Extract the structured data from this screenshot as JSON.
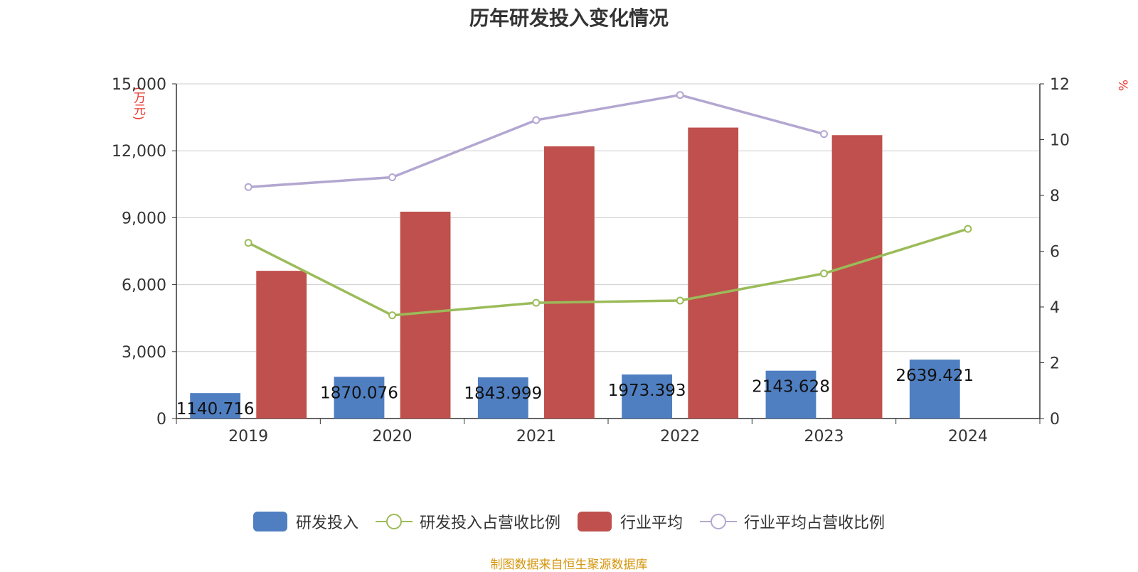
{
  "title": "历年研发投入变化情况",
  "left_unit": "(万元)",
  "right_unit": "%",
  "source": "制图数据来自恒生聚源数据库",
  "colors": {
    "rd_bar": "#4f7fc1",
    "industry_bar": "#c0504d",
    "rd_ratio_line": "#9bbb59",
    "industry_ratio_line": "#b3a7d1",
    "axis_text": "#333333",
    "grid": "#cccccc"
  },
  "legend": [
    {
      "label": "研发投入",
      "kind": "bar",
      "color": "#4f7fc1"
    },
    {
      "label": "研发投入占营收比例",
      "kind": "line",
      "color": "#9bbb59"
    },
    {
      "label": "行业平均",
      "kind": "bar",
      "color": "#c0504d"
    },
    {
      "label": "行业平均占营收比例",
      "kind": "line",
      "color": "#b3a7d1"
    }
  ],
  "chart_data": {
    "type": "bar",
    "categories": [
      "2019",
      "2020",
      "2021",
      "2022",
      "2023",
      "2024"
    ],
    "y_left": {
      "min": 0,
      "max": 15000,
      "ticks": [
        0,
        3000,
        6000,
        9000,
        12000,
        15000
      ],
      "tick_labels": [
        "0",
        "3,000",
        "6,000",
        "9,000",
        "12,000",
        "15,000"
      ]
    },
    "y_right": {
      "min": 0,
      "max": 12,
      "ticks": [
        0,
        2,
        4,
        6,
        8,
        10,
        12
      ],
      "tick_labels": [
        "0",
        "2",
        "4",
        "6",
        "8",
        "10",
        "12"
      ]
    },
    "grid": true,
    "legend_position": "bottom",
    "series": [
      {
        "name": "研发投入",
        "type": "bar",
        "axis": "left",
        "values": [
          1140.716,
          1870.076,
          1843.999,
          1973.393,
          2143.628,
          2639.421
        ],
        "labels": [
          "1140.716",
          "1870.076",
          "1843.999",
          "1973.393",
          "2143.628",
          "2639.421"
        ]
      },
      {
        "name": "研发投入占营收比例",
        "type": "line",
        "axis": "right",
        "values": [
          6.3,
          3.7,
          4.15,
          4.23,
          5.2,
          6.8
        ]
      },
      {
        "name": "行业平均",
        "type": "bar",
        "axis": "left",
        "values": [
          6620,
          9270,
          12200,
          13040,
          12700,
          null
        ]
      },
      {
        "name": "行业平均占营收比例",
        "type": "line",
        "axis": "right",
        "values": [
          8.3,
          8.65,
          10.7,
          11.6,
          10.2,
          null
        ]
      }
    ]
  }
}
